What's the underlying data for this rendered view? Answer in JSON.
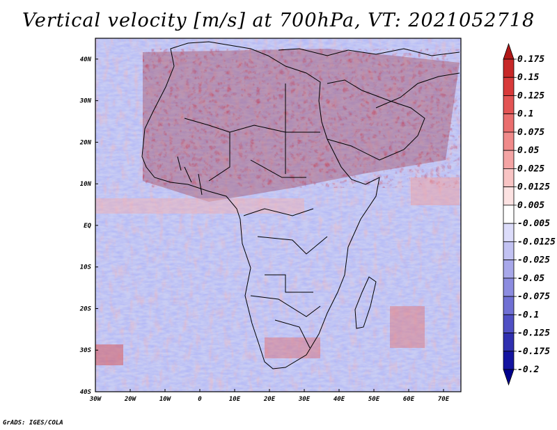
{
  "title": "Vertical velocity [m/s] at 700hPa, VT: 2021052718",
  "credit": "GrADS: IGES/COLA",
  "map": {
    "lat_labels": [
      "40N",
      "30N",
      "20N",
      "10N",
      "EQ",
      "10S",
      "20S",
      "30S",
      "40S"
    ],
    "lon_labels": [
      "30W",
      "20W",
      "10W",
      "0",
      "10E",
      "20E",
      "30E",
      "40E",
      "50E",
      "60E",
      "70E"
    ],
    "lon_range": [
      -30,
      75
    ],
    "lat_range": [
      -40,
      45
    ]
  },
  "colorbar": {
    "levels": [
      "0.175",
      "0.15",
      "0.125",
      "0.1",
      "0.075",
      "0.05",
      "0.025",
      "0.0125",
      "0.005",
      "-0.005",
      "-0.0125",
      "-0.025",
      "-0.05",
      "-0.075",
      "-0.1",
      "-0.125",
      "-0.175",
      "-0.2"
    ],
    "colors": [
      "#b01818",
      "#c72828",
      "#d83a3a",
      "#e35454",
      "#ea6e6e",
      "#f08a8a",
      "#f4a4a4",
      "#f8c4c4",
      "#fce2e2",
      "#ffffff",
      "#dcdcfa",
      "#c2c2f2",
      "#a8a8ea",
      "#8c8ce0",
      "#7070d4",
      "#5050c4",
      "#3030b0",
      "#1414a0",
      "#00008c"
    ]
  }
}
